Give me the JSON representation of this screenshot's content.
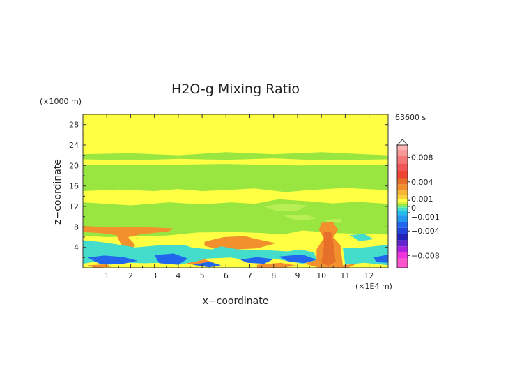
{
  "chart_data": {
    "type": "heatmap",
    "title": "H2O-g Mixing Ratio",
    "xlabel": "x−coordinate",
    "ylabel": "z−coordinate",
    "x_unit": "(×1E4 m)",
    "y_unit": "(×1000 m)",
    "time_label": "63600 s",
    "xlim": [
      0,
      12.8
    ],
    "ylim": [
      0,
      30
    ],
    "x_ticks": [
      1,
      2,
      3,
      4,
      5,
      6,
      7,
      8,
      9,
      10,
      11,
      12
    ],
    "y_ticks": [
      4,
      8,
      12,
      16,
      20,
      24,
      28
    ],
    "colorbar": {
      "range": [
        -0.01,
        0.01
      ],
      "labels": [
        {
          "value": 0.008,
          "text": "0.008"
        },
        {
          "value": 0.004,
          "text": "0.004"
        },
        {
          "value": 0.001,
          "text": "0.001"
        },
        {
          "value": 0,
          "text": "0"
        },
        {
          "value": -0.001,
          "text": "−0.001"
        },
        {
          "value": -0.004,
          "text": "−0.004"
        },
        {
          "value": -0.008,
          "text": "−0.008"
        }
      ],
      "colors": {
        "background": "#ffff44",
        "green": "#99e641",
        "light_green": "#b8ef55",
        "orange": "#f2902e",
        "dark_orange": "#e6702a",
        "cyan": "#44ddcc",
        "blue": "#2266ee"
      }
    },
    "regions": [
      {
        "level": "green",
        "points": [
          [
            0,
            22.2
          ],
          [
            2,
            22.4
          ],
          [
            4,
            22.0
          ],
          [
            6,
            22.6
          ],
          [
            8,
            22.2
          ],
          [
            10,
            22.6
          ],
          [
            12.8,
            22.0
          ],
          [
            12.8,
            21.2
          ],
          [
            10,
            21.0
          ],
          [
            8,
            21.4
          ],
          [
            6,
            21.1
          ],
          [
            4,
            21.3
          ],
          [
            2,
            21.0
          ],
          [
            0,
            21.2
          ]
        ]
      },
      {
        "level": "green",
        "points": [
          [
            0,
            20.2
          ],
          [
            3,
            20.1
          ],
          [
            6,
            20.3
          ],
          [
            9,
            20.0
          ],
          [
            12.8,
            20.2
          ],
          [
            12.8,
            15.2
          ],
          [
            11,
            15.6
          ],
          [
            9.5,
            15.2
          ],
          [
            8.5,
            14.8
          ],
          [
            7.2,
            15.5
          ],
          [
            6,
            15.2
          ],
          [
            5,
            15.0
          ],
          [
            4,
            15.4
          ],
          [
            3,
            15.0
          ],
          [
            1.5,
            15.3
          ],
          [
            0,
            15.0
          ]
        ]
      },
      {
        "level": "green",
        "points": [
          [
            0,
            12.8
          ],
          [
            2,
            12.2
          ],
          [
            3.6,
            12.8
          ],
          [
            5,
            12.4
          ],
          [
            6.2,
            12.8
          ],
          [
            7.2,
            12.5
          ],
          [
            8.2,
            13.4
          ],
          [
            9.5,
            13.0
          ],
          [
            10.5,
            12.6
          ],
          [
            11.5,
            12.9
          ],
          [
            12.8,
            12.5
          ],
          [
            12.8,
            6.5
          ],
          [
            10.5,
            6.8
          ],
          [
            9.2,
            7.3
          ],
          [
            8.4,
            6.5
          ],
          [
            7.5,
            6.8
          ],
          [
            6.4,
            7.0
          ],
          [
            4.8,
            6.9
          ],
          [
            3.5,
            6.3
          ],
          [
            2,
            6.1
          ],
          [
            1,
            6.0
          ],
          [
            0,
            6.3
          ]
        ]
      },
      {
        "level": "light_green",
        "points": [
          [
            7.6,
            12.0
          ],
          [
            8.4,
            12.6
          ],
          [
            9.4,
            12.2
          ],
          [
            9.0,
            11.2
          ],
          [
            8.2,
            11.0
          ]
        ]
      },
      {
        "level": "light_green",
        "points": [
          [
            8.4,
            10.2
          ],
          [
            9.4,
            10.4
          ],
          [
            9.8,
            9.6
          ],
          [
            9.0,
            9.2
          ]
        ]
      },
      {
        "level": "light_green",
        "points": [
          [
            10.1,
            9.4
          ],
          [
            10.8,
            9.6
          ],
          [
            10.9,
            8.8
          ],
          [
            10.3,
            8.8
          ]
        ]
      },
      {
        "level": "orange",
        "points": [
          [
            0,
            8.2
          ],
          [
            1.2,
            7.9
          ],
          [
            2.3,
            8.0
          ],
          [
            3.8,
            7.7
          ],
          [
            3.6,
            7.1
          ],
          [
            2.5,
            6.6
          ],
          [
            1.9,
            6.0
          ],
          [
            2.2,
            4.4
          ],
          [
            2.0,
            3.6
          ],
          [
            1.6,
            4.6
          ],
          [
            1.4,
            6.4
          ],
          [
            0.7,
            6.8
          ],
          [
            0,
            7.0
          ]
        ]
      },
      {
        "level": "orange",
        "points": [
          [
            2.4,
            3.6
          ],
          [
            3.0,
            4.1
          ],
          [
            3.5,
            3.2
          ],
          [
            3.1,
            2.4
          ],
          [
            2.5,
            2.6
          ]
        ]
      },
      {
        "level": "orange",
        "points": [
          [
            5.1,
            5.1
          ],
          [
            5.9,
            6.0
          ],
          [
            6.8,
            6.2
          ],
          [
            7.2,
            5.7
          ],
          [
            8.1,
            4.8
          ],
          [
            7.3,
            3.8
          ],
          [
            6.4,
            3.6
          ],
          [
            5.6,
            3.7
          ],
          [
            5.1,
            4.3
          ]
        ]
      },
      {
        "level": "orange",
        "points": [
          [
            10.0,
            8.8
          ],
          [
            10.5,
            8.9
          ],
          [
            10.7,
            7.4
          ],
          [
            10.5,
            6.0
          ],
          [
            10.8,
            4.4
          ],
          [
            10.9,
            0.5
          ],
          [
            11.5,
            0.8
          ],
          [
            11.1,
            0
          ],
          [
            9.9,
            0
          ],
          [
            9.3,
            0.8
          ],
          [
            9.8,
            1.6
          ],
          [
            9.8,
            3.6
          ],
          [
            10.1,
            5.8
          ],
          [
            9.9,
            7.4
          ]
        ]
      },
      {
        "level": "orange",
        "points": [
          [
            0.2,
            0.5
          ],
          [
            1.0,
            0.7
          ],
          [
            1.2,
            0.2
          ],
          [
            0.5,
            0
          ]
        ]
      },
      {
        "level": "orange",
        "points": [
          [
            4.3,
            1.5
          ],
          [
            5.0,
            1.8
          ],
          [
            5.5,
            1.0
          ],
          [
            5.0,
            0.5
          ],
          [
            4.4,
            0.7
          ]
        ]
      },
      {
        "level": "orange",
        "points": [
          [
            7.3,
            0.6
          ],
          [
            8.3,
            1.0
          ],
          [
            9.0,
            0.4
          ],
          [
            8.3,
            0
          ],
          [
            7.3,
            0
          ]
        ]
      },
      {
        "level": "dark_orange",
        "points": [
          [
            10.1,
            7.0
          ],
          [
            10.4,
            7.1
          ],
          [
            10.5,
            5.0
          ],
          [
            10.6,
            1.2
          ],
          [
            10.3,
            0.4
          ],
          [
            10.0,
            1.0
          ],
          [
            10.1,
            4.0
          ]
        ]
      },
      {
        "level": "cyan",
        "points": [
          [
            0,
            5.4
          ],
          [
            0.8,
            5.0
          ],
          [
            1.4,
            4.6
          ],
          [
            2.2,
            4.0
          ],
          [
            3.2,
            4.4
          ],
          [
            4.3,
            4.4
          ],
          [
            4.6,
            3.9
          ],
          [
            5.4,
            3.6
          ],
          [
            5.8,
            4.2
          ],
          [
            6.5,
            3.6
          ],
          [
            7.5,
            3.5
          ],
          [
            8.6,
            3.2
          ],
          [
            9.1,
            3.6
          ],
          [
            9.7,
            3.0
          ],
          [
            9.8,
            1.5
          ],
          [
            9.2,
            0.8
          ],
          [
            8.0,
            1.8
          ],
          [
            7.0,
            1.4
          ],
          [
            6.2,
            2.0
          ],
          [
            5.2,
            1.8
          ],
          [
            4.7,
            1.2
          ],
          [
            4.0,
            0.6
          ],
          [
            3.3,
            1.0
          ],
          [
            2.6,
            0.9
          ],
          [
            1.8,
            1.0
          ],
          [
            1.1,
            0.6
          ],
          [
            0.5,
            1.2
          ],
          [
            0,
            0.8
          ]
        ]
      },
      {
        "level": "cyan",
        "points": [
          [
            10.9,
            3.8
          ],
          [
            11.8,
            4.0
          ],
          [
            12.8,
            4.5
          ],
          [
            12.8,
            0.5
          ],
          [
            11.8,
            1.0
          ],
          [
            11.0,
            0.6
          ]
        ]
      },
      {
        "level": "cyan",
        "points": [
          [
            11.2,
            6.4
          ],
          [
            11.8,
            6.6
          ],
          [
            12.2,
            5.6
          ],
          [
            11.6,
            5.2
          ]
        ]
      },
      {
        "level": "blue",
        "points": [
          [
            0.2,
            2.0
          ],
          [
            0.9,
            2.4
          ],
          [
            1.7,
            2.1
          ],
          [
            2.3,
            1.4
          ],
          [
            1.6,
            0.7
          ],
          [
            0.7,
            0.8
          ]
        ]
      },
      {
        "level": "blue",
        "points": [
          [
            3.0,
            2.5
          ],
          [
            3.8,
            2.8
          ],
          [
            4.4,
            1.8
          ],
          [
            4.0,
            0.6
          ],
          [
            3.2,
            0.9
          ]
        ]
      },
      {
        "level": "blue",
        "points": [
          [
            4.6,
            0.6
          ],
          [
            5.3,
            1.2
          ],
          [
            5.8,
            0.5
          ],
          [
            5.3,
            0.1
          ]
        ]
      },
      {
        "level": "blue",
        "points": [
          [
            6.6,
            1.6
          ],
          [
            7.3,
            2.1
          ],
          [
            8.0,
            1.7
          ],
          [
            7.6,
            0.8
          ],
          [
            6.9,
            1.0
          ]
        ]
      },
      {
        "level": "blue",
        "points": [
          [
            8.2,
            2.2
          ],
          [
            9.2,
            2.6
          ],
          [
            9.8,
            1.6
          ],
          [
            9.3,
            0.9
          ],
          [
            8.6,
            1.3
          ]
        ]
      },
      {
        "level": "blue",
        "points": [
          [
            12.2,
            2.0
          ],
          [
            12.8,
            2.6
          ],
          [
            12.8,
            1.0
          ],
          [
            12.3,
            1.1
          ]
        ]
      }
    ]
  }
}
